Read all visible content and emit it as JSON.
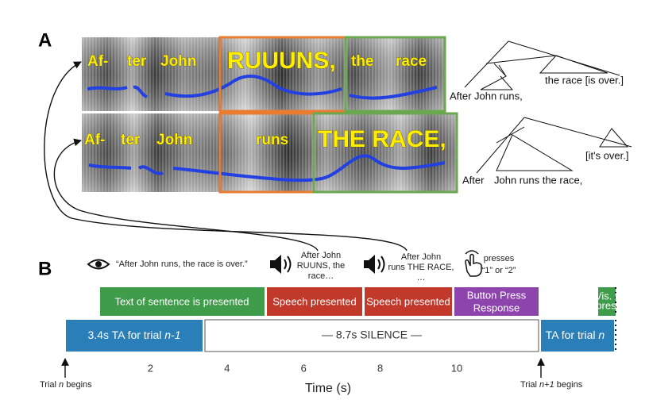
{
  "panel_a": {
    "label": "A",
    "rows": [
      {
        "words": [
          "Af-",
          "ter",
          "John",
          "RUUUNS,",
          "the",
          "race"
        ]
      },
      {
        "words": [
          "Af-",
          "ter",
          "John",
          "runs",
          "THE RACE,"
        ]
      }
    ],
    "trees": [
      {
        "leaves": [
          "After",
          "John runs,",
          "the race [is over.]"
        ]
      },
      {
        "leaves": [
          "After",
          "John runs the race,",
          "[it's over.]"
        ]
      }
    ]
  },
  "panel_b": {
    "label": "B",
    "stimuli": {
      "text_cue": "“After John runs, the race is over.”",
      "audio_1": [
        "After John",
        "RUUNS, the",
        "race…"
      ],
      "audio_2": [
        "After John",
        "runs THE RACE,",
        "…"
      ],
      "press": [
        "presses",
        "“1” or “2”"
      ]
    },
    "events": [
      "Text of sentence is presented",
      "Speech presented",
      "Speech presented",
      [
        "Button Press",
        "Response"
      ],
      [
        "Vis. text",
        "present"
      ]
    ],
    "timeline": {
      "ta_prev": [
        "3.4s TA for trial ",
        "n-1"
      ],
      "silence": "— 8.7s SILENCE —",
      "ta_next": [
        "TA for trial ",
        "n"
      ]
    },
    "axis": {
      "ticks": [
        2,
        4,
        6,
        8,
        10
      ],
      "label": "Time (s)"
    },
    "trial_start": [
      "Trial ",
      "n",
      " begins"
    ],
    "trial_next": [
      "Trial ",
      "n+1",
      " begins"
    ]
  }
}
